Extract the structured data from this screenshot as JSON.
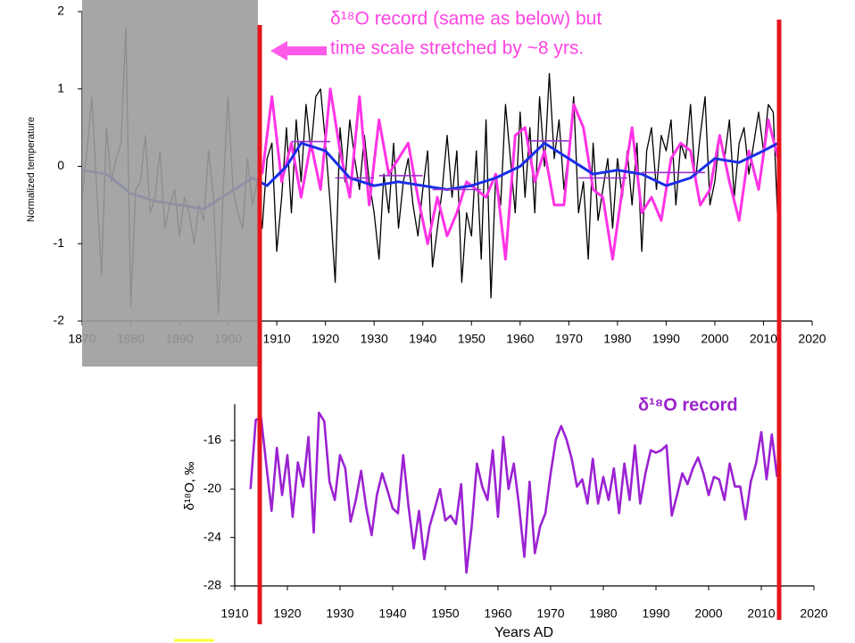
{
  "chart_data": [
    {
      "type": "line",
      "ylabel": "Normalized temperature",
      "annotations": [
        "δ¹⁸O record (same as below) but",
        "time scale stretched by ~8 yrs."
      ],
      "xlim": [
        1870,
        2020
      ],
      "xticks": [
        1870,
        1880,
        1890,
        1900,
        1910,
        1920,
        1930,
        1940,
        1950,
        1960,
        1970,
        1980,
        1990,
        2000,
        2010,
        2020
      ],
      "ylim": [
        -2,
        2
      ],
      "yticks": [
        -2,
        -1,
        0,
        1,
        2
      ],
      "series": [
        {
          "color": "#000000",
          "x": [
            1870,
            1871,
            1872,
            1873,
            1874,
            1875,
            1876,
            1877,
            1878,
            1879,
            1880,
            1881,
            1882,
            1883,
            1884,
            1885,
            1886,
            1887,
            1888,
            1889,
            1890,
            1891,
            1892,
            1893,
            1894,
            1895,
            1896,
            1897,
            1898,
            1899,
            1900,
            1901,
            1902,
            1903,
            1904,
            1905,
            1906,
            1907,
            1908,
            1909,
            1910,
            1911,
            1912,
            1913,
            1914,
            1915,
            1916,
            1917,
            1918,
            1919,
            1920,
            1921,
            1922,
            1923,
            1924,
            1925,
            1926,
            1927,
            1928,
            1929,
            1930,
            1931,
            1932,
            1933,
            1934,
            1935,
            1936,
            1937,
            1938,
            1939,
            1940,
            1941,
            1942,
            1943,
            1944,
            1945,
            1946,
            1947,
            1948,
            1949,
            1950,
            1951,
            1952,
            1953,
            1954,
            1955,
            1956,
            1957,
            1958,
            1959,
            1960,
            1961,
            1962,
            1963,
            1964,
            1965,
            1966,
            1967,
            1968,
            1969,
            1970,
            1971,
            1972,
            1973,
            1974,
            1975,
            1976,
            1977,
            1978,
            1979,
            1980,
            1981,
            1982,
            1983,
            1984,
            1985,
            1986,
            1987,
            1988,
            1989,
            1990,
            1991,
            1992,
            1993,
            1994,
            1995,
            1996,
            1997,
            1998,
            1999,
            2000,
            2001,
            2002,
            2003,
            2004,
            2005,
            2006,
            2007,
            2008,
            2009,
            2010,
            2011,
            2012,
            2013
          ],
          "values": [
            -0.4,
            0.2,
            0.9,
            -0.3,
            -1.4,
            0.5,
            -0.2,
            0.1,
            0.3,
            1.8,
            -1.8,
            -0.3,
            -0.2,
            0.4,
            -0.6,
            -0.4,
            0.2,
            -0.8,
            -0.5,
            -0.3,
            -0.9,
            -0.4,
            -0.6,
            -1.0,
            -0.5,
            -0.7,
            0.2,
            -0.4,
            -1.9,
            -0.3,
            0.9,
            -0.3,
            -0.6,
            -0.8,
            0.1,
            -0.5,
            -0.2,
            -0.8,
            0.1,
            0.3,
            -1.1,
            -0.4,
            0.5,
            -0.6,
            0.6,
            -0.2,
            0.8,
            0.2,
            0.9,
            1.0,
            0.3,
            -0.5,
            -1.5,
            0.5,
            -0.2,
            0.6,
            0.1,
            -0.3,
            0.4,
            -0.2,
            -0.6,
            -1.2,
            -0.1,
            -0.6,
            0.3,
            -0.8,
            -0.2,
            0.1,
            -0.5,
            -0.9,
            -0.3,
            0.2,
            -1.3,
            -0.8,
            -0.3,
            0.4,
            -0.4,
            0.2,
            -1.5,
            -0.6,
            -0.9,
            0.2,
            -1.2,
            0.6,
            -1.7,
            -0.1,
            -0.5,
            0.8,
            0.1,
            -0.6,
            0.7,
            -0.4,
            0.5,
            -0.6,
            0.9,
            0.0,
            1.2,
            0.1,
            0.6,
            -0.3,
            0.2,
            0.9,
            -0.6,
            -0.2,
            -1.2,
            0.3,
            -0.7,
            -0.3,
            0.1,
            -0.8,
            0.1,
            -0.4,
            0.2,
            -0.5,
            0.3,
            -1.1,
            0.2,
            0.5,
            -0.3,
            0.4,
            0.2,
            0.6,
            -0.5,
            0.3,
            0.1,
            0.8,
            -0.2,
            0.4,
            0.9,
            -0.5,
            -0.2,
            0.4,
            0.1,
            0.6,
            -0.4,
            0.3,
            0.5,
            -0.1,
            0.3,
            0.7,
            0.2,
            0.8,
            0.7,
            -0.8
          ]
        },
        {
          "color": "#ff33e6",
          "x": [
            1907,
            1909,
            1911,
            1913,
            1915,
            1917,
            1919,
            1921,
            1923,
            1925,
            1927,
            1929,
            1931,
            1933,
            1935,
            1937,
            1939,
            1941,
            1943,
            1945,
            1947,
            1949,
            1951,
            1953,
            1955,
            1957,
            1959,
            1961,
            1963,
            1965,
            1967,
            1969,
            1971,
            1973,
            1975,
            1977,
            1979,
            1981,
            1983,
            1985,
            1987,
            1989,
            1991,
            1993,
            1995,
            1997,
            1999,
            2001,
            2003,
            2005,
            2007,
            2009,
            2011,
            2013
          ],
          "values": [
            -0.1,
            0.9,
            -0.2,
            0.3,
            -0.4,
            0.3,
            -0.3,
            1.0,
            0.2,
            -0.4,
            0.9,
            -0.5,
            0.6,
            -0.1,
            0.1,
            0.3,
            -0.4,
            -1.0,
            -0.4,
            -0.9,
            -0.6,
            -0.2,
            -0.3,
            -0.4,
            -0.1,
            -1.2,
            0.4,
            0.5,
            -0.2,
            0.2,
            -0.5,
            -0.5,
            0.8,
            0.5,
            -0.3,
            -0.4,
            -1.2,
            -0.3,
            0.5,
            -0.6,
            -0.4,
            -0.7,
            0.1,
            0.3,
            0.2,
            -0.5,
            -0.3,
            0.4,
            -0.2,
            -0.7,
            0.2,
            -0.3,
            0.6,
            0.1
          ]
        },
        {
          "color": "#1a2ee6",
          "x": [
            1870,
            1875,
            1880,
            1885,
            1890,
            1895,
            1900,
            1905,
            1908,
            1912,
            1915,
            1920,
            1925,
            1930,
            1935,
            1940,
            1945,
            1950,
            1955,
            1960,
            1965,
            1970,
            1975,
            1980,
            1985,
            1990,
            1995,
            2000,
            2005,
            2010,
            2013
          ],
          "values": [
            -0.05,
            -0.1,
            -0.35,
            -0.45,
            -0.5,
            -0.55,
            -0.35,
            -0.15,
            -0.25,
            0.0,
            0.3,
            0.2,
            -0.15,
            -0.25,
            -0.2,
            -0.25,
            -0.3,
            -0.25,
            -0.15,
            0.0,
            0.3,
            0.1,
            -0.1,
            -0.05,
            -0.1,
            -0.25,
            -0.15,
            0.1,
            0.05,
            0.2,
            0.3
          ]
        },
        {
          "color": "#9933cc",
          "x": [
            1913,
            1921,
            1922,
            1922,
            1930,
            1931,
            1931,
            1940,
            1941,
            1942,
            1952,
            1953,
            1962,
            1970,
            1971,
            1972,
            1982,
            1983,
            1985,
            1998
          ],
          "values": [
            0.32,
            0.32,
            null,
            -0.15,
            -0.15,
            null,
            -0.12,
            -0.12,
            null,
            -0.3,
            -0.3,
            null,
            0.33,
            0.33,
            null,
            -0.15,
            -0.15,
            null,
            -0.08,
            -0.08
          ]
        }
      ]
    },
    {
      "type": "line",
      "title": "δ¹⁸O record",
      "ylabel": "δ¹⁸O, ‰",
      "xlabel": "Years AD",
      "xlim": [
        1910,
        2020
      ],
      "xticks": [
        1910,
        1920,
        1930,
        1940,
        1950,
        1960,
        1970,
        1980,
        1990,
        2000,
        2010,
        2020
      ],
      "ylim": [
        -28,
        -13
      ],
      "yticks": [
        -16,
        -20,
        -24,
        -28
      ],
      "series": [
        {
          "color": "#9b22d2",
          "x": [
            1913,
            1914,
            1915,
            1916,
            1917,
            1918,
            1919,
            1920,
            1921,
            1922,
            1923,
            1924,
            1925,
            1926,
            1927,
            1928,
            1929,
            1930,
            1931,
            1932,
            1933,
            1934,
            1935,
            1936,
            1937,
            1938,
            1939,
            1940,
            1941,
            1942,
            1943,
            1944,
            1945,
            1946,
            1947,
            1948,
            1949,
            1950,
            1951,
            1952,
            1953,
            1954,
            1955,
            1956,
            1957,
            1958,
            1959,
            1960,
            1961,
            1962,
            1963,
            1964,
            1965,
            1966,
            1967,
            1968,
            1969,
            1970,
            1971,
            1972,
            1973,
            1974,
            1975,
            1976,
            1977,
            1978,
            1979,
            1980,
            1981,
            1982,
            1983,
            1984,
            1985,
            1986,
            1987,
            1988,
            1989,
            1990,
            1991,
            1992,
            1993,
            1994,
            1995,
            1996,
            1997,
            1998,
            1999,
            2000,
            2001,
            2002,
            2003,
            2004,
            2005,
            2006,
            2007,
            2008,
            2009,
            2010,
            2011,
            2012,
            2013
          ],
          "values": [
            -20.0,
            -14.3,
            -14.1,
            -18.0,
            -21.8,
            -16.6,
            -20.5,
            -17.2,
            -22.3,
            -17.8,
            -19.8,
            -15.7,
            -23.6,
            -13.7,
            -14.4,
            -19.4,
            -20.9,
            -17.2,
            -18.3,
            -22.7,
            -20.9,
            -18.5,
            -21.6,
            -23.8,
            -20.5,
            -18.7,
            -20.1,
            -21.6,
            -22.0,
            -17.2,
            -21.4,
            -24.9,
            -21.8,
            -25.8,
            -23.1,
            -21.6,
            -20.0,
            -22.6,
            -22.2,
            -22.9,
            -19.6,
            -26.9,
            -23.1,
            -17.9,
            -19.8,
            -20.9,
            -16.8,
            -22.3,
            -15.7,
            -20.0,
            -17.9,
            -21.4,
            -25.6,
            -19.4,
            -25.3,
            -23.1,
            -22.0,
            -18.7,
            -15.9,
            -14.8,
            -15.9,
            -17.5,
            -19.8,
            -19.2,
            -21.2,
            -17.5,
            -21.2,
            -19.0,
            -20.9,
            -18.3,
            -22.0,
            -17.9,
            -20.9,
            -16.4,
            -21.2,
            -18.7,
            -16.8,
            -17.0,
            -16.8,
            -16.4,
            -22.2,
            -20.5,
            -18.7,
            -19.6,
            -18.3,
            -17.4,
            -18.7,
            -20.5,
            -19.0,
            -19.2,
            -20.9,
            -17.9,
            -19.8,
            -19.8,
            -22.5,
            -19.4,
            -17.9,
            -15.3,
            -19.2,
            -15.5,
            -19.0
          ]
        }
      ]
    }
  ]
}
